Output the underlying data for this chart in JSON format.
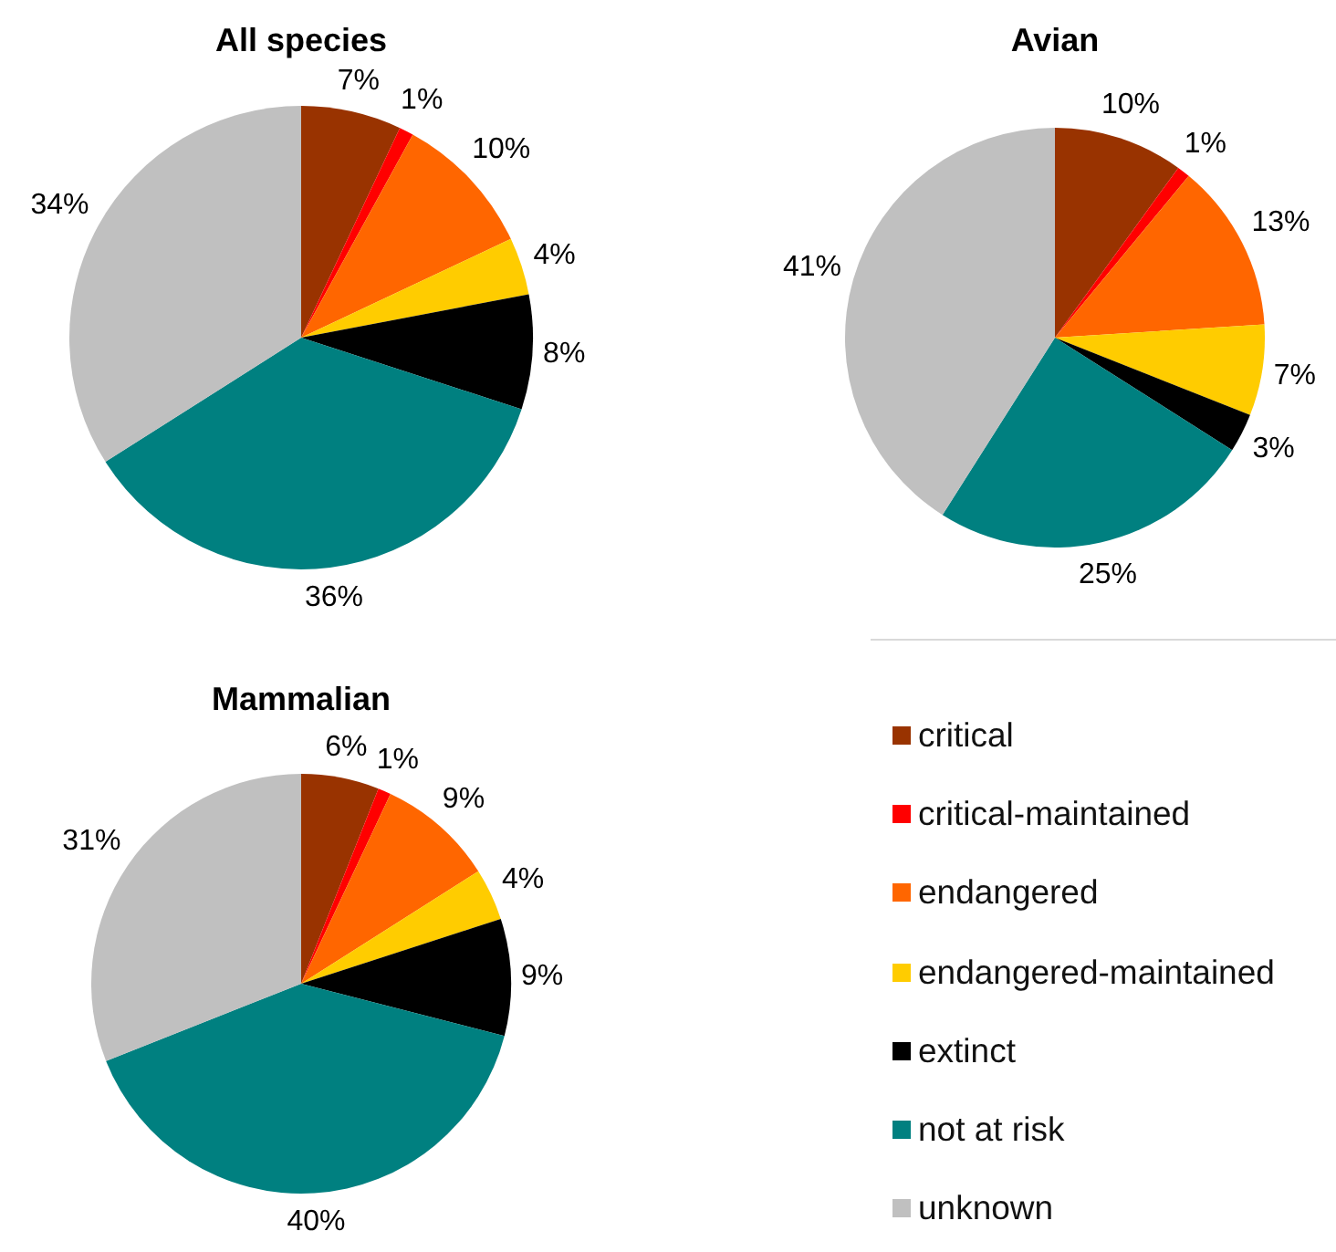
{
  "chart_data": {
    "type": "pie",
    "categories": [
      "critical",
      "critical-maintained",
      "endangered",
      "endangered-maintained",
      "extinct",
      "not at risk",
      "unknown"
    ],
    "colors": [
      "#993300",
      "#ff0000",
      "#ff6600",
      "#ffcc00",
      "#000000",
      "#008080",
      "#c0c0c0"
    ],
    "series": [
      {
        "name": "All species",
        "values": [
          7,
          1,
          10,
          4,
          8,
          36,
          34
        ],
        "value_labels": [
          "7%",
          "1%",
          "10%",
          "4%",
          "8%",
          "36%",
          "34%"
        ]
      },
      {
        "name": "Avian",
        "values": [
          10,
          1,
          13,
          7,
          3,
          25,
          41
        ],
        "value_labels": [
          "10%",
          "1%",
          "13%",
          "7%",
          "3%",
          "25%",
          "41%"
        ]
      },
      {
        "name": "Mammalian",
        "values": [
          6,
          1,
          9,
          4,
          9,
          40,
          31
        ],
        "value_labels": [
          "6%",
          "1%",
          "9%",
          "4%",
          "9%",
          "40%",
          "31%"
        ]
      }
    ],
    "legend": "bottom right"
  }
}
